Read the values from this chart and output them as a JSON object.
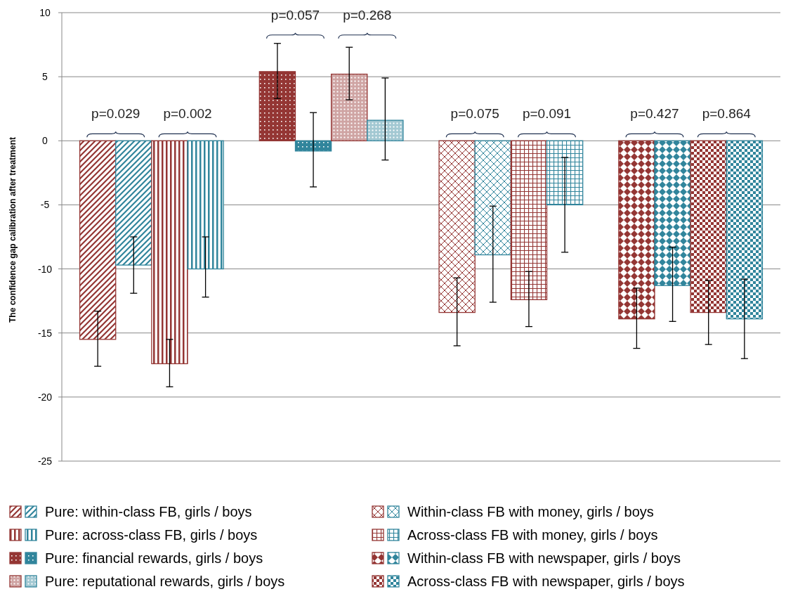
{
  "chart_data": {
    "type": "bar",
    "ylabel": "The confidence  gap calibration  after treatment",
    "categories": [
      null,
      null,
      null,
      null,
      null,
      null,
      null,
      null,
      null,
      null,
      null,
      null,
      null,
      null,
      null,
      null
    ],
    "ylim": [
      -25,
      10
    ],
    "yticks": [
      -25,
      -20,
      -15,
      -10,
      -5,
      0,
      5,
      10
    ],
    "grid": "y",
    "legend": "bottom",
    "series": [
      {
        "name": "Pure: within-class FB, girls / boys",
        "values": [
          -15.5,
          -9.7,
          null,
          null,
          null,
          null,
          null,
          null,
          null,
          null,
          null,
          null,
          null,
          null,
          null,
          null
        ],
        "colors": [
          "#943634",
          "#31859c",
          null,
          null,
          null,
          null,
          null,
          null,
          null,
          null,
          null,
          null,
          null,
          null,
          null,
          null
        ],
        "errors": [
          [
            -17.6,
            -13.3
          ],
          [
            -11.9,
            -7.5
          ],
          null,
          null,
          null,
          null,
          null,
          null,
          null,
          null,
          null,
          null,
          null,
          null,
          null,
          null
        ]
      },
      {
        "name": "Pure: across-class FB, girls / boys",
        "values": [
          null,
          null,
          -17.4,
          -10.0,
          null,
          null,
          null,
          null,
          null,
          null,
          null,
          null,
          null,
          null,
          null,
          null
        ],
        "colors": [
          null,
          null,
          "#943634",
          "#31859c",
          null,
          null,
          null,
          null,
          null,
          null,
          null,
          null,
          null,
          null,
          null,
          null
        ],
        "errors": [
          null,
          null,
          [
            -19.2,
            -15.5
          ],
          [
            -12.2,
            -7.5
          ],
          null,
          null,
          null,
          null,
          null,
          null,
          null,
          null,
          null,
          null,
          null,
          null
        ]
      },
      {
        "name": "Pure: financial rewards, girls / boys",
        "values": [
          null,
          null,
          null,
          null,
          5.4,
          -0.8,
          null,
          null,
          null,
          null,
          null,
          null,
          null,
          null,
          null,
          null
        ],
        "colors": [
          null,
          null,
          null,
          null,
          "#943634",
          "#31859c",
          null,
          null,
          null,
          null,
          null,
          null,
          null,
          null,
          null,
          null
        ],
        "errors": [
          null,
          null,
          null,
          null,
          [
            3.3,
            7.6
          ],
          [
            -3.6,
            2.2
          ],
          null,
          null,
          null,
          null,
          null,
          null,
          null,
          null,
          null,
          null
        ]
      },
      {
        "name": "Pure: reputational rewards, girls / boys",
        "values": [
          null,
          null,
          null,
          null,
          null,
          null,
          5.2,
          1.6,
          null,
          null,
          null,
          null,
          null,
          null,
          null,
          null
        ],
        "colors": [
          null,
          null,
          null,
          null,
          null,
          null,
          "#943634",
          "#31859c",
          null,
          null,
          null,
          null,
          null,
          null,
          null,
          null
        ],
        "errors": [
          null,
          null,
          null,
          null,
          null,
          null,
          [
            3.2,
            7.3
          ],
          [
            -1.5,
            4.9
          ],
          null,
          null,
          null,
          null,
          null,
          null,
          null,
          null
        ]
      },
      {
        "name": "Within-class FB with money, girls / boys",
        "values": [
          null,
          null,
          null,
          null,
          null,
          null,
          null,
          null,
          -13.4,
          -8.9,
          null,
          null,
          null,
          null,
          null,
          null
        ],
        "colors": [
          null,
          null,
          null,
          null,
          null,
          null,
          null,
          null,
          "#943634",
          "#31859c",
          null,
          null,
          null,
          null,
          null,
          null
        ],
        "errors": [
          null,
          null,
          null,
          null,
          null,
          null,
          null,
          null,
          [
            -16.0,
            -10.7
          ],
          [
            -12.6,
            -5.1
          ],
          null,
          null,
          null,
          null,
          null,
          null
        ]
      },
      {
        "name": "Across-class FB with money, girls / boys",
        "values": [
          null,
          null,
          null,
          null,
          null,
          null,
          null,
          null,
          null,
          null,
          -12.4,
          -5.0,
          null,
          null,
          null,
          null
        ],
        "colors": [
          null,
          null,
          null,
          null,
          null,
          null,
          null,
          null,
          null,
          null,
          "#943634",
          "#31859c",
          null,
          null,
          null,
          null
        ],
        "errors": [
          null,
          null,
          null,
          null,
          null,
          null,
          null,
          null,
          null,
          null,
          [
            -14.5,
            -10.2
          ],
          [
            -8.7,
            -1.3
          ],
          null,
          null,
          null,
          null
        ]
      },
      {
        "name": "Within-class FB with newspaper, girls / boys",
        "values": [
          null,
          null,
          null,
          null,
          null,
          null,
          null,
          null,
          null,
          null,
          null,
          null,
          -13.9,
          -11.3,
          null,
          null
        ],
        "colors": [
          null,
          null,
          null,
          null,
          null,
          null,
          null,
          null,
          null,
          null,
          null,
          null,
          "#943634",
          "#31859c",
          null,
          null
        ],
        "errors": [
          null,
          null,
          null,
          null,
          null,
          null,
          null,
          null,
          null,
          null,
          null,
          null,
          [
            -16.2,
            -11.5
          ],
          [
            -14.1,
            -8.3
          ],
          null,
          null
        ]
      },
      {
        "name": "Across-class FB with newspaper, girls / boys",
        "values": [
          null,
          null,
          null,
          null,
          null,
          null,
          null,
          null,
          null,
          null,
          null,
          null,
          null,
          null,
          -13.4,
          -13.9
        ],
        "colors": [
          null,
          null,
          null,
          null,
          null,
          null,
          null,
          null,
          null,
          null,
          null,
          null,
          null,
          null,
          "#943634",
          "#31859c"
        ],
        "errors": [
          null,
          null,
          null,
          null,
          null,
          null,
          null,
          null,
          null,
          null,
          null,
          null,
          null,
          null,
          [
            -15.9,
            -10.9
          ],
          [
            -17.0,
            -10.8
          ]
        ]
      }
    ],
    "annotations": [
      "p=0.029",
      "p=0.002",
      "p=0.057",
      "p=0.268",
      "p=0.075",
      "p=0.091",
      "p=0.427",
      "p=0.864"
    ]
  }
}
